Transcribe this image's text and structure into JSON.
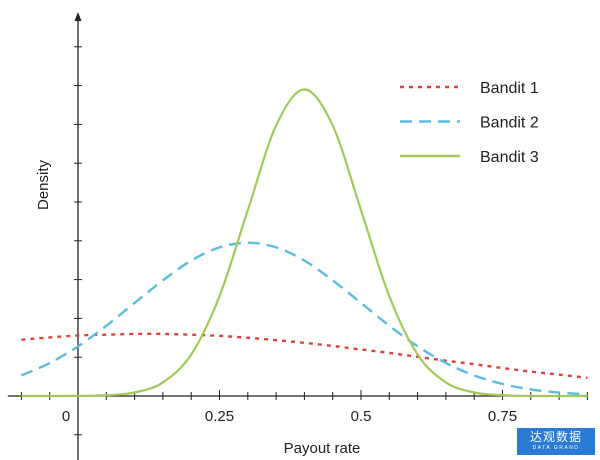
{
  "chart_data": {
    "type": "line",
    "xlabel": "Payout rate",
    "ylabel": "Density",
    "xlim": [
      -0.124,
      0.9
    ],
    "ylim": [
      0,
      9.8
    ],
    "x_ticks": [
      "0",
      "0.25",
      "0.5",
      "0.75"
    ],
    "x_tick_values": [
      0,
      0.25,
      0.5,
      0.75
    ],
    "y_tick_labels_shown": false,
    "grid": false,
    "legend": "top-right",
    "x": [
      -0.1,
      -0.05,
      0,
      0.05,
      0.1,
      0.15,
      0.2,
      0.25,
      0.3,
      0.35,
      0.4,
      0.45,
      0.5,
      0.55,
      0.6,
      0.65,
      0.7,
      0.75,
      0.8,
      0.85,
      0.9
    ],
    "series": [
      {
        "name": "Bandit 1",
        "color": "#d9443f",
        "style": "dotted",
        "values": [
          1.45,
          1.51,
          1.56,
          1.58,
          1.6,
          1.6,
          1.58,
          1.55,
          1.5,
          1.44,
          1.37,
          1.29,
          1.2,
          1.11,
          1.01,
          0.91,
          0.82,
          0.72,
          0.63,
          0.55,
          0.47
        ]
      },
      {
        "name": "Bandit 2",
        "color": "#5bbde0",
        "style": "dashed",
        "values": [
          0.53,
          0.85,
          1.28,
          1.81,
          2.4,
          2.98,
          3.49,
          3.83,
          3.95,
          3.83,
          3.49,
          2.98,
          2.4,
          1.81,
          1.28,
          0.85,
          0.53,
          0.31,
          0.17,
          0.09,
          0.04
        ]
      },
      {
        "name": "Bandit 3",
        "color": "#a3c95a",
        "style": "solid",
        "values": [
          0,
          0,
          0.003,
          0.02,
          0.09,
          0.35,
          1.07,
          2.57,
          4.79,
          6.97,
          7.9,
          6.97,
          4.79,
          2.57,
          1.07,
          0.35,
          0.09,
          0.02,
          0,
          0,
          0
        ]
      }
    ]
  },
  "logo": {
    "text_cn": "达观数据",
    "text_en": "DATA GRAND"
  }
}
